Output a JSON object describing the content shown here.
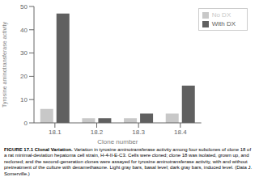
{
  "chart_data": {
    "type": "bar",
    "categories": [
      "18.1",
      "18.2",
      "18.3",
      "18.4"
    ],
    "series": [
      {
        "name": "No DX",
        "color": "#c8c8c8",
        "values": [
          6,
          2,
          2,
          4
        ]
      },
      {
        "name": "With DX",
        "color": "#606060",
        "values": [
          47,
          2,
          4,
          16
        ]
      }
    ],
    "xlabel": "Clone number",
    "ylabel": "Tyrosine aminotransferase activity",
    "ylim": [
      0,
      50
    ],
    "yticks": [
      0,
      10,
      20,
      30,
      40,
      50
    ],
    "grid": false,
    "legend": "upper right",
    "annotations": [
      "FIGURE 17.1 Clonal Variation.",
      "Variation in tyrosine aminotransferase activity among four subclones of clone 18 of a rat minimal-deviation hepatoma cell strain, H-4-II-E-C3. Cells were cloned; clone 18 was isolated, grown up, and recloned; and the second-generation clones were assayed for tyrosine aminotransferase activity, with and without pretreatment of the culture with dexamethasone. Light gray bars, basal level; dark gray bars, induced level. (Data J. Somerville.)"
    ]
  }
}
